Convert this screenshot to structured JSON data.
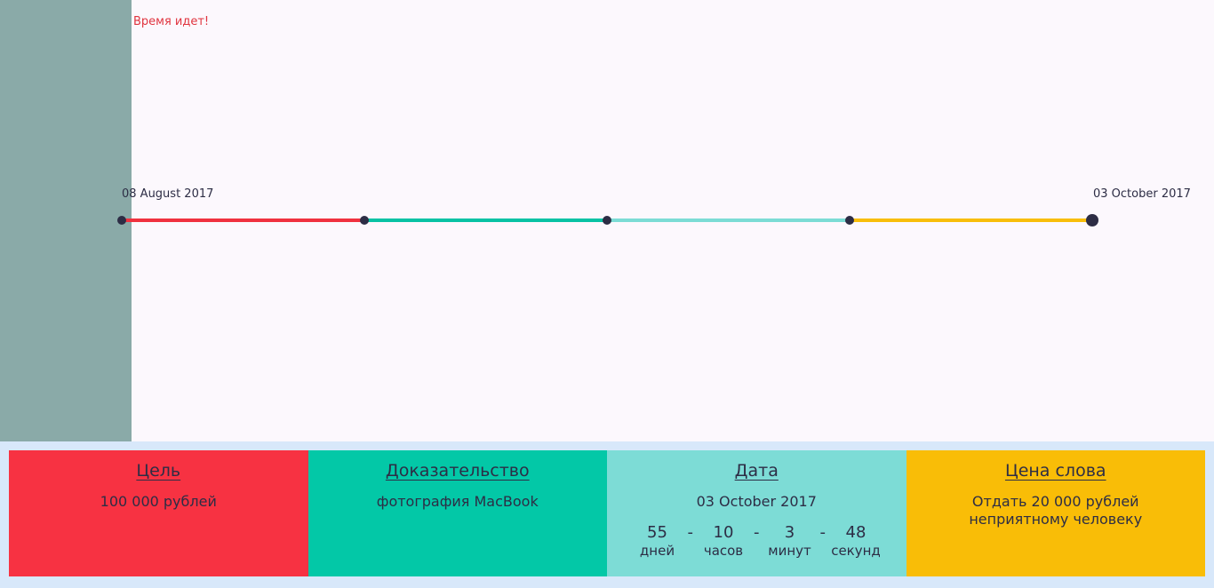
{
  "tagline": "Время идет!",
  "timeline": {
    "start_date": "08 August 2017",
    "end_date": "03 October 2017",
    "colors": [
      "#f0313f",
      "#08c2a4",
      "#7cdcd5",
      "#f8be0a"
    ]
  },
  "cards": {
    "goal": {
      "title": "Цель",
      "text": "100 000 рублей"
    },
    "proof": {
      "title": "Доказательство",
      "text": "фотография MacBook"
    },
    "date": {
      "title": "Дата",
      "text": "03 October 2017",
      "countdown": {
        "days": "55",
        "days_label": "дней",
        "hours": "10",
        "hours_label": "часов",
        "minutes": "3",
        "minutes_label": "минут",
        "seconds": "48",
        "seconds_label": "секунд",
        "separator": "-"
      }
    },
    "price": {
      "title": "Цена слова",
      "text_line1": "Отдать 20 000 рублей",
      "text_line2": "неприятному человеку"
    }
  }
}
